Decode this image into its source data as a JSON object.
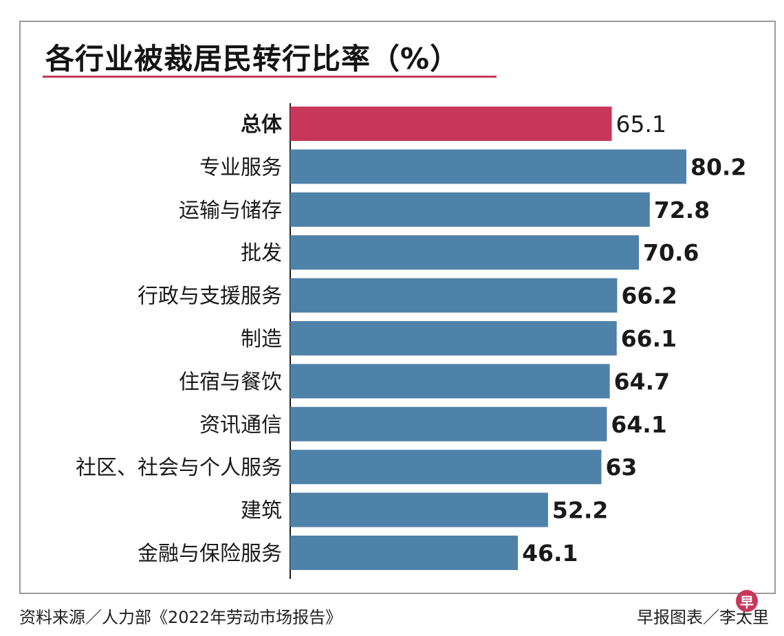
{
  "title": "各行业被裁居民转行比率（%）",
  "colors": {
    "highlight": "#c8375a",
    "bar": "#4f82a9",
    "axis": "#1a1a1a"
  },
  "chart_data": {
    "type": "bar",
    "orientation": "horizontal",
    "title": "各行业被裁居民转行比率（%）",
    "categories": [
      "总体",
      "专业服务",
      "运输与储存",
      "批发",
      "行政与支援服务",
      "制造",
      "住宿与餐饮",
      "资讯通信",
      "社区、社会与个人服务",
      "建筑",
      "金融与保险服务"
    ],
    "values": [
      65.1,
      80.2,
      72.8,
      70.6,
      66.2,
      66.1,
      64.7,
      64.1,
      63,
      52.2,
      46.1
    ],
    "value_labels": [
      "65.1",
      "80.2",
      "72.8",
      "70.6",
      "66.2",
      "66.1",
      "64.7",
      "64.1",
      "63",
      "52.2",
      "46.1"
    ],
    "highlight_index": 0,
    "xlim": [
      0,
      100
    ],
    "grid": false,
    "legend": "none"
  },
  "footer": {
    "source": "资料来源／人力部《2022年劳动市场报告》",
    "credit": "早报图表／李太里",
    "logo_char": "早"
  }
}
